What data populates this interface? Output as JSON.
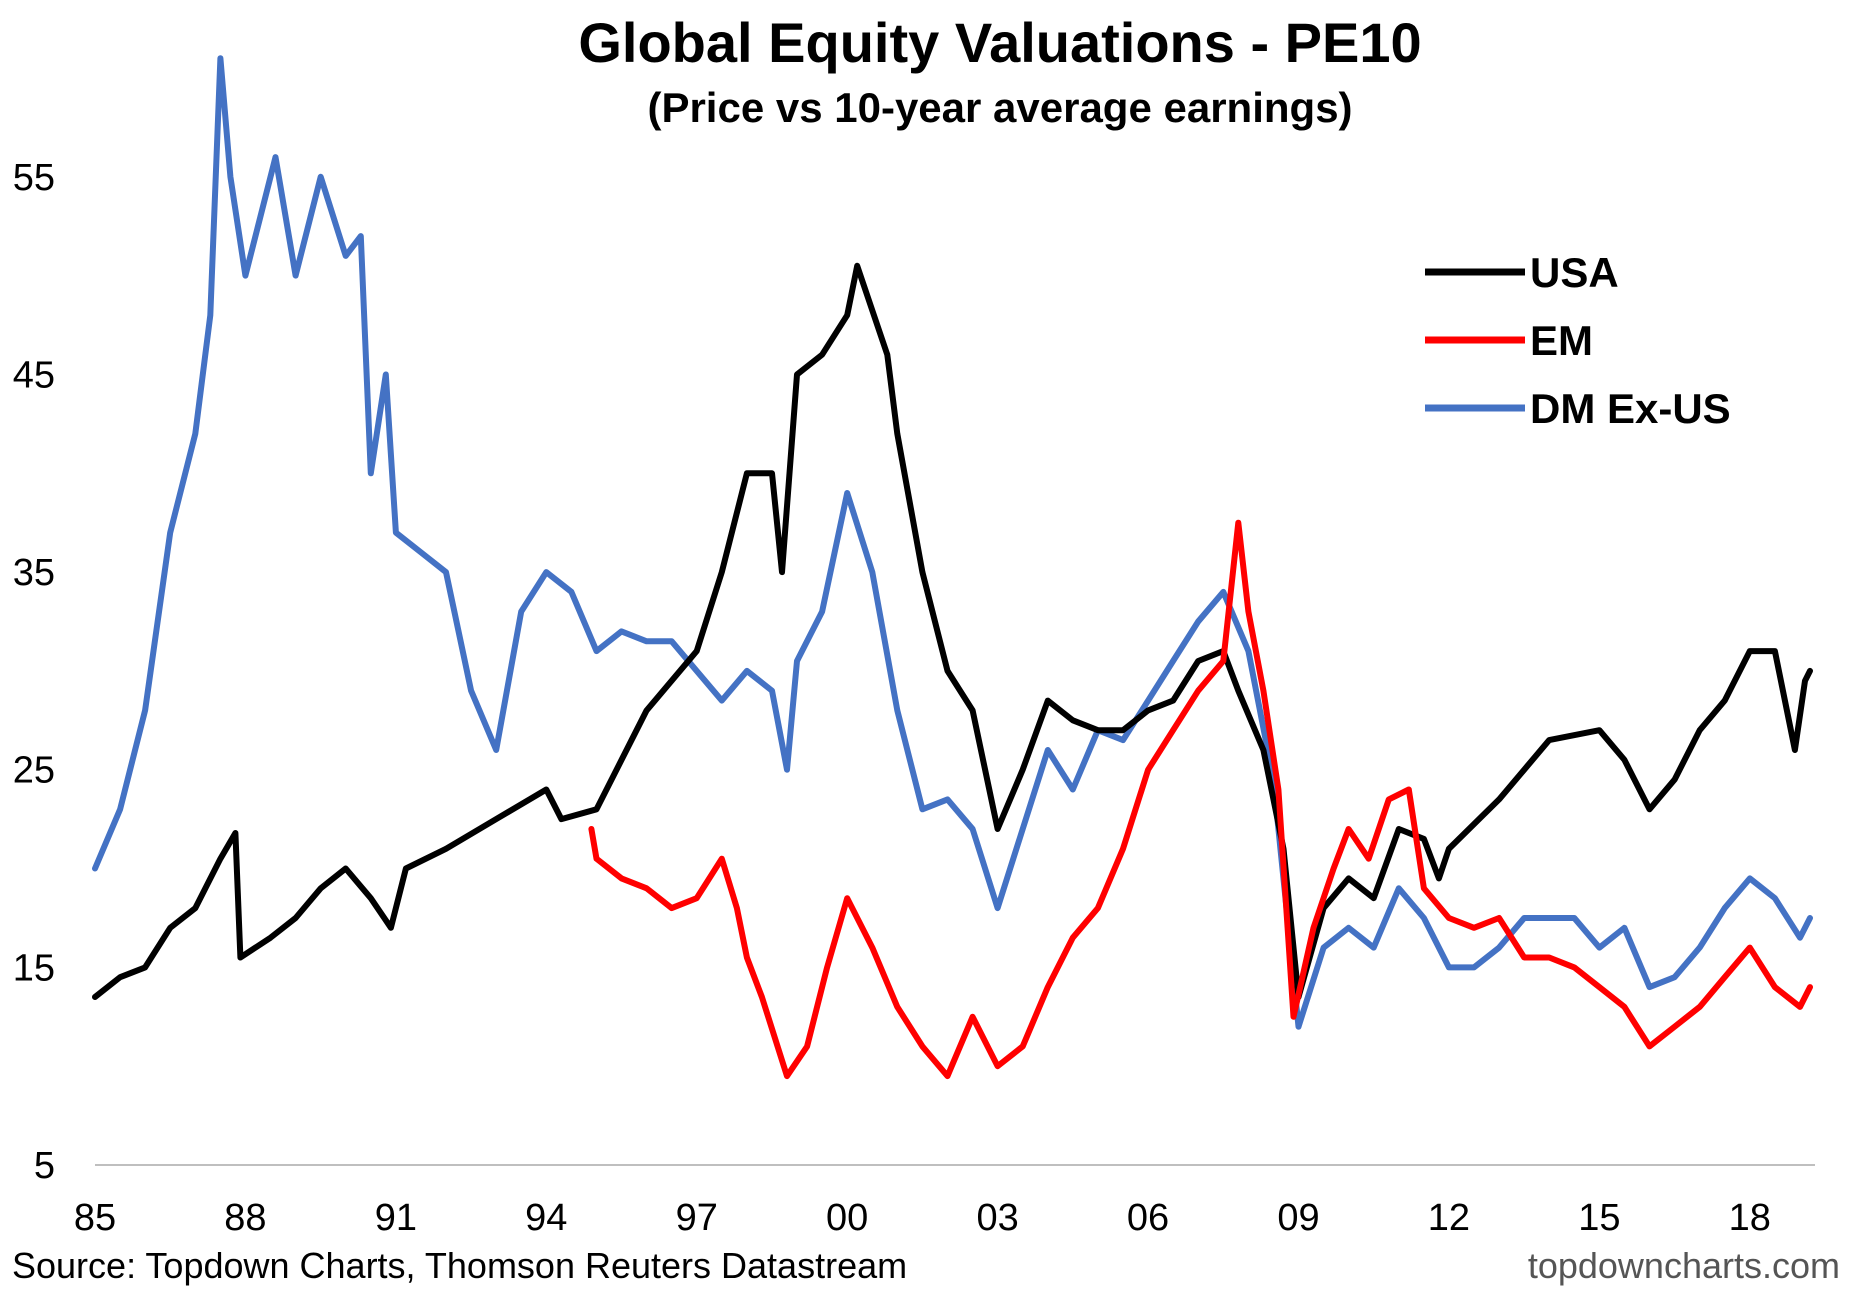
{
  "chart_data": {
    "type": "line",
    "title": "Global Equity Valuations - PE10",
    "subtitle": "(Price vs 10-year average earnings)",
    "xlabel": "",
    "ylabel": "",
    "xlim": [
      1985,
      2019.3
    ],
    "ylim": [
      5,
      60
    ],
    "grid": false,
    "legend_position": "top-right",
    "x_ticks": [
      {
        "value": 1985,
        "label": "85"
      },
      {
        "value": 1988,
        "label": "88"
      },
      {
        "value": 1991,
        "label": "91"
      },
      {
        "value": 1994,
        "label": "94"
      },
      {
        "value": 1997,
        "label": "97"
      },
      {
        "value": 2000,
        "label": "00"
      },
      {
        "value": 2003,
        "label": "03"
      },
      {
        "value": 2006,
        "label": "06"
      },
      {
        "value": 2009,
        "label": "09"
      },
      {
        "value": 2012,
        "label": "12"
      },
      {
        "value": 2015,
        "label": "15"
      },
      {
        "value": 2018,
        "label": "18"
      }
    ],
    "y_ticks": [
      {
        "value": 5,
        "label": "5"
      },
      {
        "value": 15,
        "label": "15"
      },
      {
        "value": 25,
        "label": "25"
      },
      {
        "value": 35,
        "label": "35"
      },
      {
        "value": 45,
        "label": "45"
      },
      {
        "value": 55,
        "label": "55"
      }
    ],
    "series": [
      {
        "name": "USA",
        "color": "#000000",
        "points": [
          [
            1985.0,
            13.5
          ],
          [
            1985.5,
            14.5
          ],
          [
            1986.0,
            15.0
          ],
          [
            1986.5,
            17.0
          ],
          [
            1987.0,
            18.0
          ],
          [
            1987.5,
            20.5
          ],
          [
            1987.8,
            21.8
          ],
          [
            1987.9,
            15.5
          ],
          [
            1988.5,
            16.5
          ],
          [
            1989.0,
            17.5
          ],
          [
            1989.5,
            19.0
          ],
          [
            1990.0,
            20.0
          ],
          [
            1990.5,
            18.5
          ],
          [
            1990.9,
            17.0
          ],
          [
            1991.2,
            20.0
          ],
          [
            1992.0,
            21.0
          ],
          [
            1993.0,
            22.5
          ],
          [
            1994.0,
            24.0
          ],
          [
            1994.3,
            22.5
          ],
          [
            1995.0,
            23.0
          ],
          [
            1996.0,
            28.0
          ],
          [
            1997.0,
            31.0
          ],
          [
            1997.5,
            35.0
          ],
          [
            1998.0,
            40.0
          ],
          [
            1998.5,
            40.0
          ],
          [
            1998.7,
            35.0
          ],
          [
            1999.0,
            45.0
          ],
          [
            1999.5,
            46.0
          ],
          [
            2000.0,
            48.0
          ],
          [
            2000.2,
            50.5
          ],
          [
            2000.8,
            46.0
          ],
          [
            2001.0,
            42.0
          ],
          [
            2001.5,
            35.0
          ],
          [
            2002.0,
            30.0
          ],
          [
            2002.5,
            28.0
          ],
          [
            2003.0,
            22.0
          ],
          [
            2003.5,
            25.0
          ],
          [
            2004.0,
            28.5
          ],
          [
            2004.5,
            27.5
          ],
          [
            2005.0,
            27.0
          ],
          [
            2005.5,
            27.0
          ],
          [
            2006.0,
            28.0
          ],
          [
            2006.5,
            28.5
          ],
          [
            2007.0,
            30.5
          ],
          [
            2007.5,
            31.0
          ],
          [
            2007.8,
            29.0
          ],
          [
            2008.3,
            26.0
          ],
          [
            2008.7,
            21.0
          ],
          [
            2009.0,
            13.5
          ],
          [
            2009.5,
            18.0
          ],
          [
            2010.0,
            19.5
          ],
          [
            2010.5,
            18.5
          ],
          [
            2011.0,
            22.0
          ],
          [
            2011.5,
            21.5
          ],
          [
            2011.8,
            19.5
          ],
          [
            2012.0,
            21.0
          ],
          [
            2013.0,
            23.5
          ],
          [
            2014.0,
            26.5
          ],
          [
            2015.0,
            27.0
          ],
          [
            2015.5,
            25.5
          ],
          [
            2016.0,
            23.0
          ],
          [
            2016.5,
            24.5
          ],
          [
            2017.0,
            27.0
          ],
          [
            2017.5,
            28.5
          ],
          [
            2018.0,
            31.0
          ],
          [
            2018.5,
            31.0
          ],
          [
            2018.9,
            26.0
          ],
          [
            2019.1,
            29.5
          ],
          [
            2019.2,
            30.0
          ]
        ]
      },
      {
        "name": "EM",
        "color": "#ff0000",
        "points": [
          [
            1994.9,
            22.0
          ],
          [
            1995.0,
            20.5
          ],
          [
            1995.5,
            19.5
          ],
          [
            1996.0,
            19.0
          ],
          [
            1996.5,
            18.0
          ],
          [
            1997.0,
            18.5
          ],
          [
            1997.5,
            20.5
          ],
          [
            1997.8,
            18.0
          ],
          [
            1998.0,
            15.5
          ],
          [
            1998.3,
            13.5
          ],
          [
            1998.8,
            9.5
          ],
          [
            1999.2,
            11.0
          ],
          [
            1999.6,
            15.0
          ],
          [
            2000.0,
            18.5
          ],
          [
            2000.5,
            16.0
          ],
          [
            2001.0,
            13.0
          ],
          [
            2001.5,
            11.0
          ],
          [
            2002.0,
            9.5
          ],
          [
            2002.5,
            12.5
          ],
          [
            2003.0,
            10.0
          ],
          [
            2003.5,
            11.0
          ],
          [
            2004.0,
            14.0
          ],
          [
            2004.5,
            16.5
          ],
          [
            2005.0,
            18.0
          ],
          [
            2005.5,
            21.0
          ],
          [
            2006.0,
            25.0
          ],
          [
            2006.5,
            27.0
          ],
          [
            2007.0,
            29.0
          ],
          [
            2007.5,
            30.5
          ],
          [
            2007.8,
            37.5
          ],
          [
            2008.0,
            33.0
          ],
          [
            2008.3,
            29.0
          ],
          [
            2008.6,
            24.0
          ],
          [
            2008.9,
            12.5
          ],
          [
            2009.3,
            17.0
          ],
          [
            2009.7,
            20.0
          ],
          [
            2010.0,
            22.0
          ],
          [
            2010.4,
            20.5
          ],
          [
            2010.8,
            23.5
          ],
          [
            2011.2,
            24.0
          ],
          [
            2011.5,
            19.0
          ],
          [
            2012.0,
            17.5
          ],
          [
            2012.5,
            17.0
          ],
          [
            2013.0,
            17.5
          ],
          [
            2013.5,
            15.5
          ],
          [
            2014.0,
            15.5
          ],
          [
            2014.5,
            15.0
          ],
          [
            2015.0,
            14.0
          ],
          [
            2015.5,
            13.0
          ],
          [
            2016.0,
            11.0
          ],
          [
            2016.5,
            12.0
          ],
          [
            2017.0,
            13.0
          ],
          [
            2017.5,
            14.5
          ],
          [
            2018.0,
            16.0
          ],
          [
            2018.5,
            14.0
          ],
          [
            2019.0,
            13.0
          ],
          [
            2019.2,
            14.0
          ]
        ]
      },
      {
        "name": "DM Ex-US",
        "color": "#4472c4",
        "points": [
          [
            1985.0,
            20.0
          ],
          [
            1985.5,
            23.0
          ],
          [
            1986.0,
            28.0
          ],
          [
            1986.5,
            37.0
          ],
          [
            1987.0,
            42.0
          ],
          [
            1987.3,
            48.0
          ],
          [
            1987.5,
            61.0
          ],
          [
            1987.7,
            55.0
          ],
          [
            1988.0,
            50.0
          ],
          [
            1988.3,
            53.0
          ],
          [
            1988.6,
            56.0
          ],
          [
            1989.0,
            50.0
          ],
          [
            1989.5,
            55.0
          ],
          [
            1990.0,
            51.0
          ],
          [
            1990.3,
            52.0
          ],
          [
            1990.5,
            40.0
          ],
          [
            1990.8,
            45.0
          ],
          [
            1991.0,
            37.0
          ],
          [
            1991.5,
            36.0
          ],
          [
            1992.0,
            35.0
          ],
          [
            1992.5,
            29.0
          ],
          [
            1993.0,
            26.0
          ],
          [
            1993.5,
            33.0
          ],
          [
            1994.0,
            35.0
          ],
          [
            1994.5,
            34.0
          ],
          [
            1995.0,
            31.0
          ],
          [
            1995.5,
            32.0
          ],
          [
            1996.0,
            31.5
          ],
          [
            1996.5,
            31.5
          ],
          [
            1997.0,
            30.0
          ],
          [
            1997.5,
            28.5
          ],
          [
            1998.0,
            30.0
          ],
          [
            1998.5,
            29.0
          ],
          [
            1998.8,
            25.0
          ],
          [
            1999.0,
            30.5
          ],
          [
            1999.5,
            33.0
          ],
          [
            2000.0,
            39.0
          ],
          [
            2000.5,
            35.0
          ],
          [
            2001.0,
            28.0
          ],
          [
            2001.5,
            23.0
          ],
          [
            2002.0,
            23.5
          ],
          [
            2002.5,
            22.0
          ],
          [
            2003.0,
            18.0
          ],
          [
            2003.5,
            22.0
          ],
          [
            2004.0,
            26.0
          ],
          [
            2004.5,
            24.0
          ],
          [
            2005.0,
            27.0
          ],
          [
            2005.5,
            26.5
          ],
          [
            2006.0,
            28.5
          ],
          [
            2006.5,
            30.5
          ],
          [
            2007.0,
            32.5
          ],
          [
            2007.5,
            34.0
          ],
          [
            2008.0,
            31.0
          ],
          [
            2008.5,
            24.5
          ],
          [
            2009.0,
            12.0
          ],
          [
            2009.5,
            16.0
          ],
          [
            2010.0,
            17.0
          ],
          [
            2010.5,
            16.0
          ],
          [
            2011.0,
            19.0
          ],
          [
            2011.5,
            17.5
          ],
          [
            2012.0,
            15.0
          ],
          [
            2012.5,
            15.0
          ],
          [
            2013.0,
            16.0
          ],
          [
            2013.5,
            17.5
          ],
          [
            2014.0,
            17.5
          ],
          [
            2014.5,
            17.5
          ],
          [
            2015.0,
            16.0
          ],
          [
            2015.5,
            17.0
          ],
          [
            2016.0,
            14.0
          ],
          [
            2016.5,
            14.5
          ],
          [
            2017.0,
            16.0
          ],
          [
            2017.5,
            18.0
          ],
          [
            2018.0,
            19.5
          ],
          [
            2018.5,
            18.5
          ],
          [
            2019.0,
            16.5
          ],
          [
            2019.2,
            17.5
          ]
        ]
      }
    ]
  },
  "footer": {
    "source": "Source: Topdown Charts, Thomson Reuters Datastream",
    "brand": "topdowncharts.com"
  }
}
